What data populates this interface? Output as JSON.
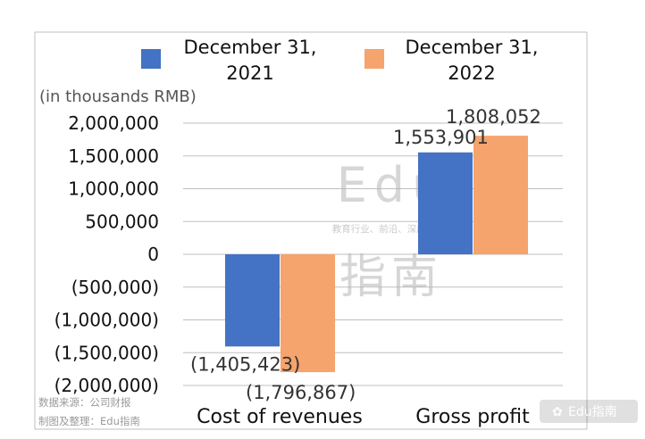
{
  "unit_label": "(in thousands RMB)",
  "source_line1": "数据来源：公司财报",
  "source_line2": "制图及整理：Edu指南",
  "watermark": {
    "logo_text": "Edu",
    "tagline": "教育行业、前沿、深度、独家",
    "cn_text": "指南"
  },
  "brand_tag": "Edu指南",
  "colors": {
    "series1": "#4472C4",
    "series2": "#F4A46C",
    "grid": "#BFBFBF",
    "frame": "#BFBFBF"
  },
  "chart_data": {
    "type": "bar",
    "categories": [
      "Cost of revenues",
      "Gross profit"
    ],
    "series": [
      {
        "name": "December 31, 2021",
        "values": [
          -1405423,
          1553901
        ],
        "labels": [
          "(1,405,423)",
          "1,553,901"
        ]
      },
      {
        "name": "December 31, 2022",
        "values": [
          -1796867,
          1808052
        ],
        "labels": [
          "(1,796,867)",
          "1,808,052"
        ]
      }
    ],
    "ylim": [
      -2000000,
      2000000
    ],
    "yticks": [
      2000000,
      1500000,
      1000000,
      500000,
      0,
      -500000,
      -1000000,
      -1500000,
      -2000000
    ],
    "ytick_labels": [
      "2,000,000",
      "1,500,000",
      "1,000,000",
      "500,000",
      "0",
      "(500,000)",
      "(1,000,000)",
      "(1,500,000)",
      "(2,000,000)"
    ],
    "grid": true,
    "legend_position": "top"
  }
}
